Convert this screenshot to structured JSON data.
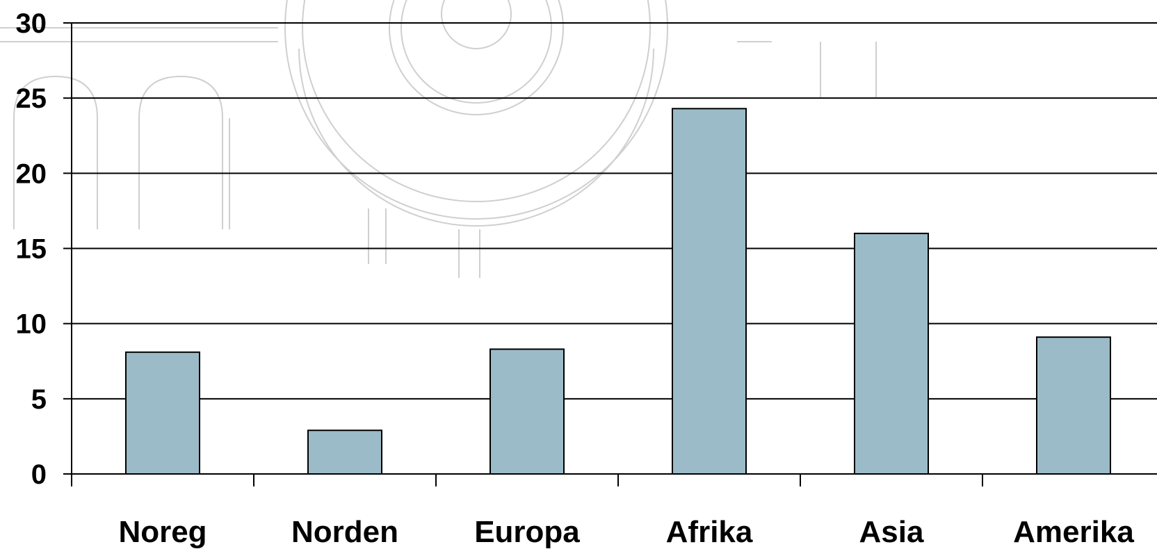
{
  "chart_data": {
    "type": "bar",
    "categories": [
      "Noreg",
      "Norden",
      "Europa",
      "Afrika",
      "Asia",
      "Amerika"
    ],
    "values": [
      8.1,
      2.9,
      8.3,
      24.3,
      16.0,
      9.1
    ],
    "title": "",
    "xlabel": "",
    "ylabel": "",
    "ylim": [
      0,
      30
    ],
    "yticks": [
      "0",
      "5",
      "10",
      "15",
      "20",
      "25",
      "30"
    ],
    "grid": true,
    "legend": "none",
    "bar_color": "#9bbbc8",
    "bar_edge_color": "#000000",
    "grid_color": "#000000"
  }
}
